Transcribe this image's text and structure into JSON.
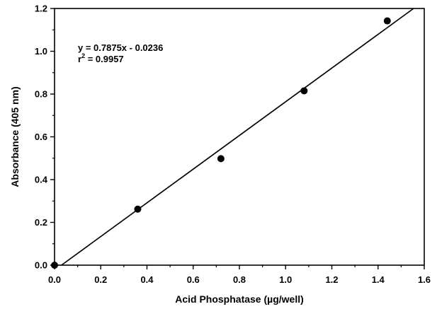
{
  "chart_data": {
    "type": "scatter",
    "title": "",
    "xlabel": "Acid Phosphatase (µg/well)",
    "ylabel": "Absorbance (405 nm)",
    "xlim": [
      0.0,
      1.6
    ],
    "ylim": [
      0.0,
      1.2
    ],
    "x_ticks": [
      "0.0",
      "0.2",
      "0.4",
      "0.6",
      "0.8",
      "1.0",
      "1.2",
      "1.4",
      "1.6"
    ],
    "y_ticks": [
      "0.0",
      "0.2",
      "0.4",
      "0.6",
      "0.8",
      "1.0",
      "1.2"
    ],
    "x_tick_values": [
      0.0,
      0.2,
      0.4,
      0.6,
      0.8,
      1.0,
      1.2,
      1.4,
      1.6
    ],
    "y_tick_values": [
      0.0,
      0.2,
      0.4,
      0.6,
      0.8,
      1.0,
      1.2
    ],
    "points": {
      "x": [
        0.0,
        0.36,
        0.72,
        1.08,
        1.44
      ],
      "y": [
        0.0,
        0.262,
        0.498,
        0.815,
        1.142
      ]
    },
    "fit_line": {
      "slope": 0.7875,
      "intercept": -0.0236
    },
    "annotation": {
      "equation": "y = 0.7875x - 0.0236",
      "r_prefix": "r",
      "r_sup": "2",
      "r_value": " = 0.9957"
    },
    "grid": false,
    "colors": {
      "marker": "#000000",
      "line": "#000000",
      "axes": "#000000"
    }
  }
}
